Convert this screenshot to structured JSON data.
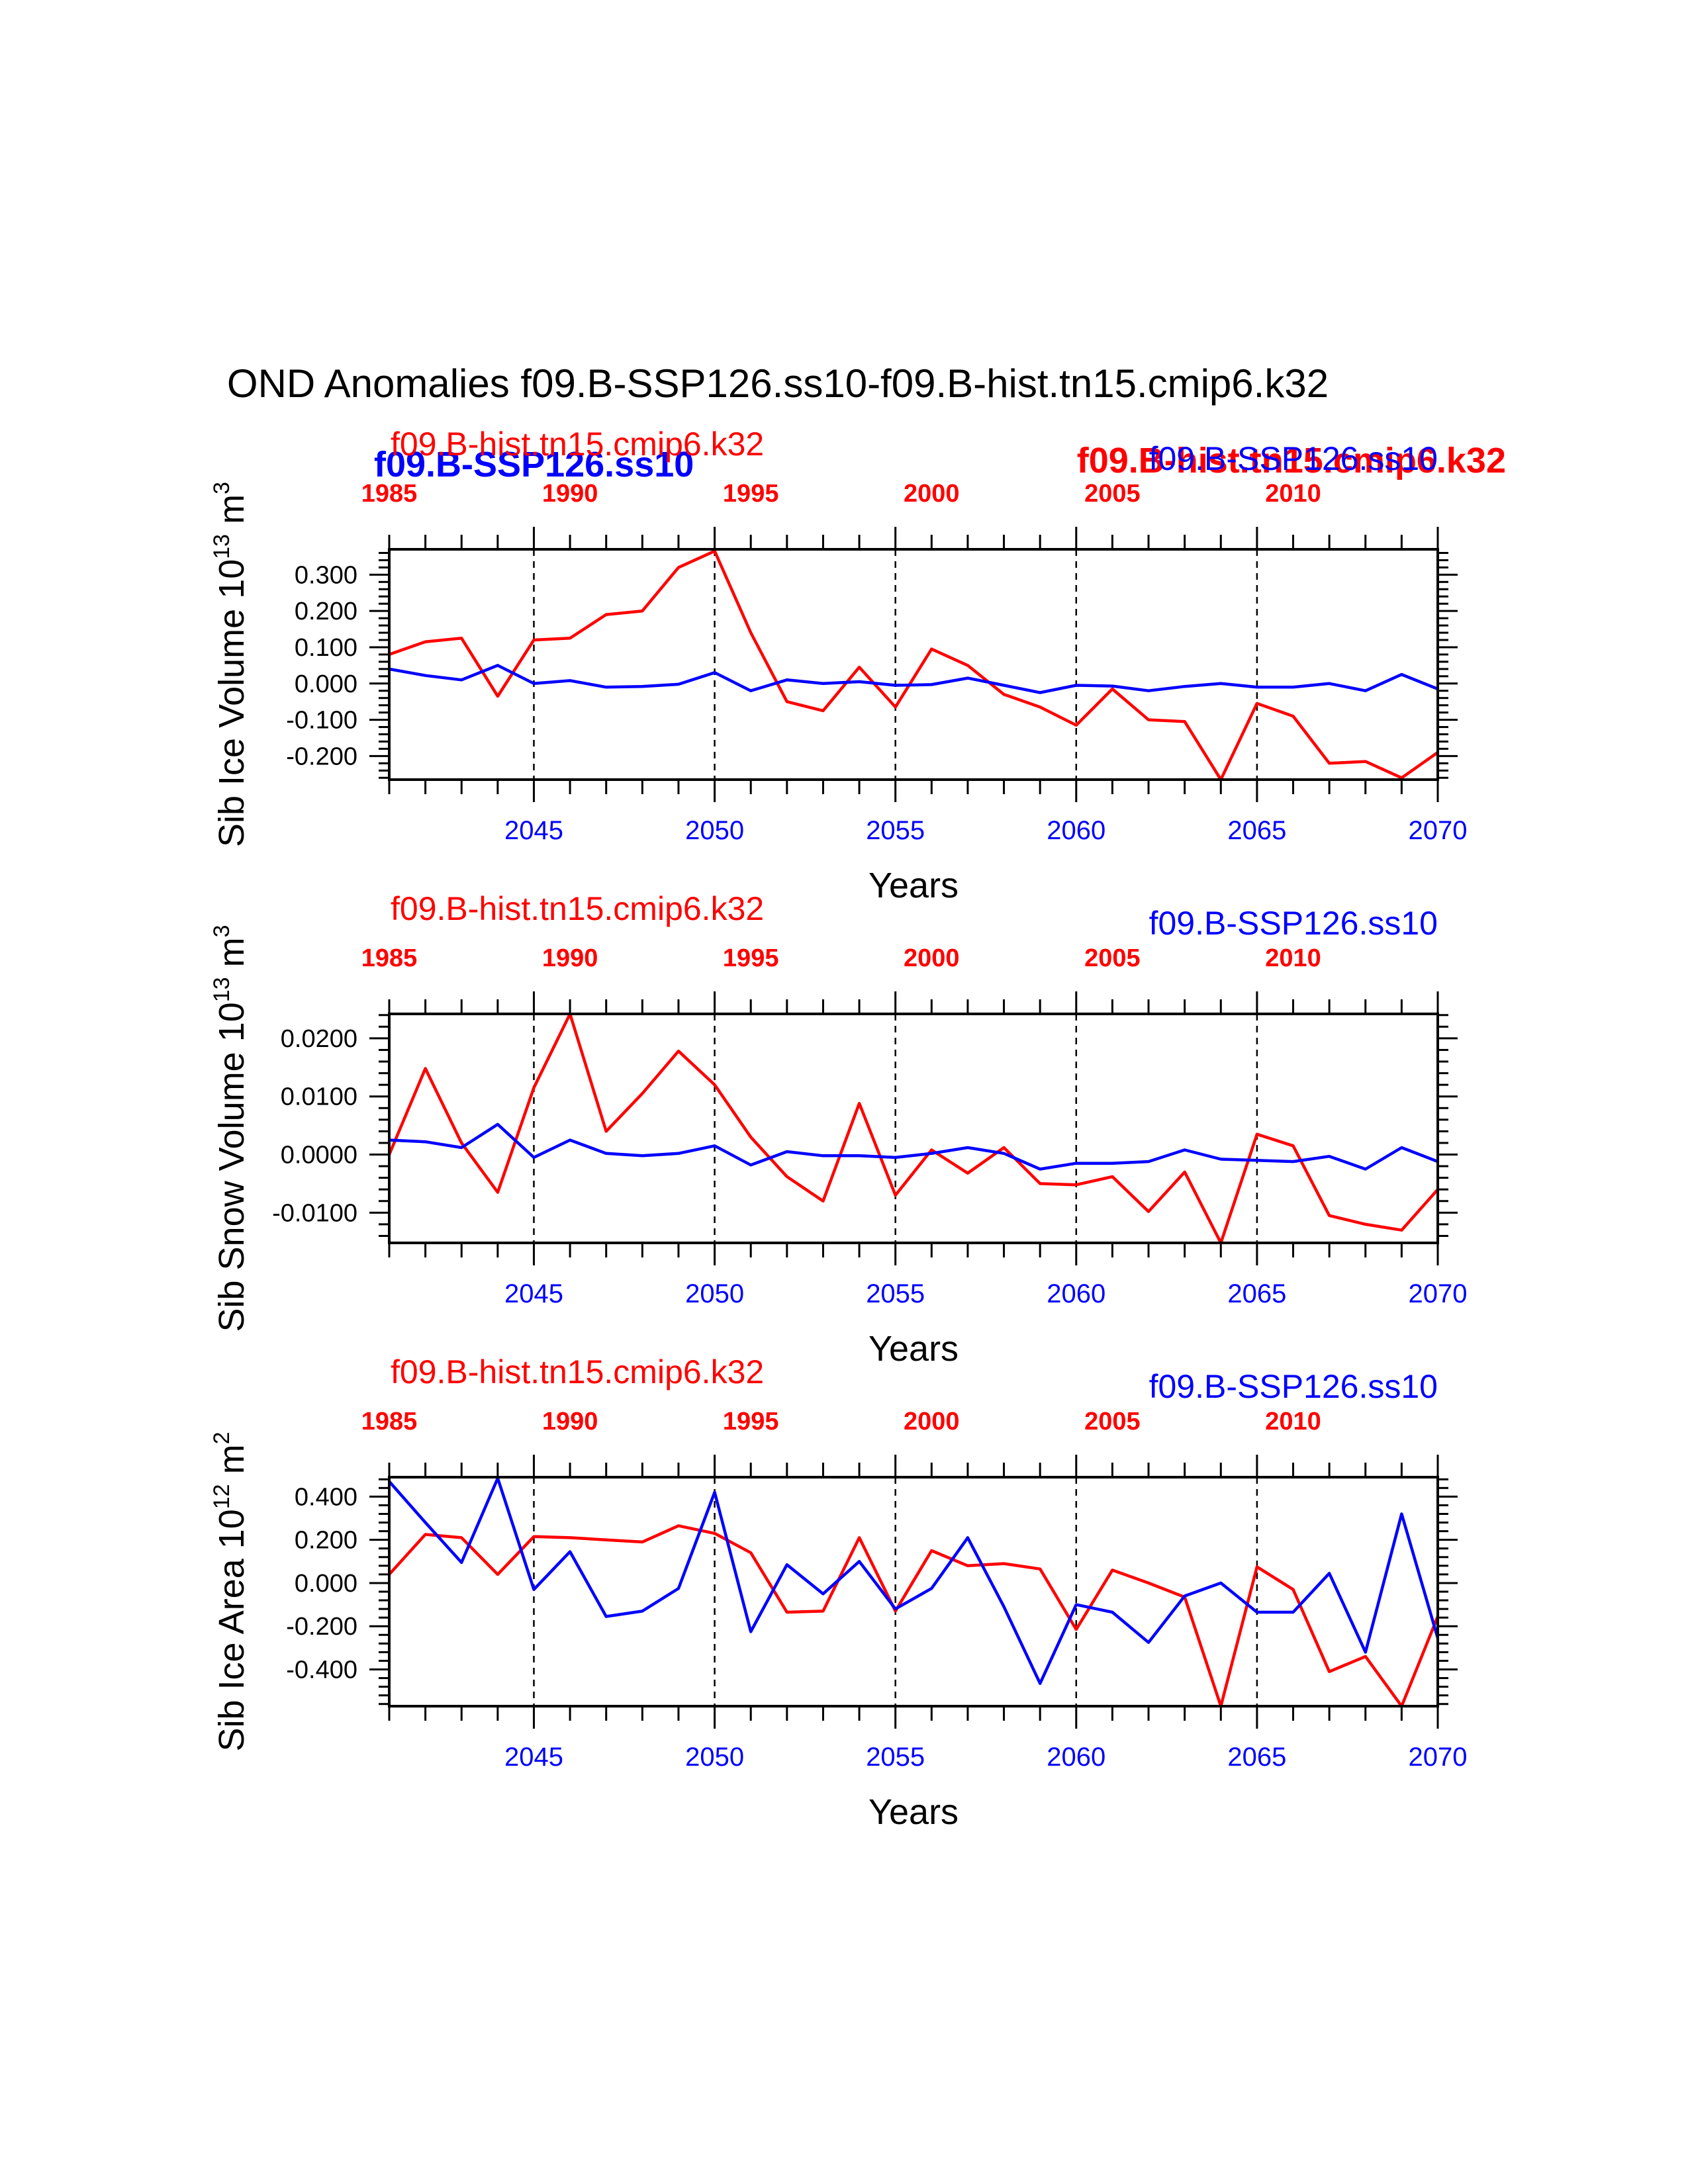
{
  "title": "OND Anomalies f09.B-SSP126.ss10-f09.B-hist.tn15.cmip6.k32",
  "overlay_labels": {
    "blue_bold": "f09.B-SSP126.ss10",
    "red_bold": "f09.B-hist.tn15.cmip6.k32"
  },
  "colors": {
    "hist": "#ff0000",
    "ssp": "#0000ff"
  },
  "chart_data": [
    {
      "type": "line",
      "ylabel": "Sib Ice Volume 10",
      "ylabel_exp": "13",
      "ylabel_unit": " m",
      "ylabel_unit_exp": "3",
      "xlabel": "Years",
      "top_series_label": "f09.B-hist.tn15.cmip6.k32",
      "bottom_series_label": "f09.B-SSP126.ss10",
      "ylim": [
        -0.265,
        0.37
      ],
      "yticks": [
        -0.2,
        -0.1,
        0.0,
        0.1,
        0.2,
        0.3
      ],
      "ytick_labels": [
        "-0.200",
        "-0.100",
        "0.000",
        "0.100",
        "0.200",
        "0.300"
      ],
      "xlim": [
        2041,
        2070
      ],
      "bottom_xticks": [
        2045,
        2050,
        2055,
        2060,
        2065,
        2070
      ],
      "top_xticks": [
        1985,
        1990,
        1995,
        2000,
        2005,
        2010
      ],
      "series": [
        {
          "name": "f09.B-hist.tn15.cmip6.k32",
          "x": [
            2041,
            2042,
            2043,
            2044,
            2045,
            2046,
            2047,
            2048,
            2049,
            2050,
            2051,
            2052,
            2053,
            2054,
            2055,
            2056,
            2057,
            2058,
            2059,
            2060,
            2061,
            2062,
            2063,
            2064,
            2065,
            2066,
            2067,
            2068,
            2069,
            2070
          ],
          "values": [
            0.08,
            0.115,
            0.125,
            -0.035,
            0.12,
            0.125,
            0.19,
            0.2,
            0.32,
            0.365,
            0.14,
            -0.05,
            -0.075,
            0.045,
            -0.065,
            0.095,
            0.05,
            -0.03,
            -0.065,
            -0.115,
            -0.015,
            -0.1,
            -0.105,
            -0.265,
            -0.055,
            -0.09,
            -0.22,
            -0.215,
            -0.26,
            -0.19
          ]
        },
        {
          "name": "f09.B-SSP126.ss10",
          "x": [
            2041,
            2042,
            2043,
            2044,
            2045,
            2046,
            2047,
            2048,
            2049,
            2050,
            2051,
            2052,
            2053,
            2054,
            2055,
            2056,
            2057,
            2058,
            2059,
            2060,
            2061,
            2062,
            2063,
            2064,
            2065,
            2066,
            2067,
            2068,
            2069,
            2070
          ],
          "values": [
            0.04,
            0.022,
            0.01,
            0.05,
            0.0,
            0.008,
            -0.01,
            -0.008,
            -0.002,
            0.03,
            -0.02,
            0.01,
            0.0,
            0.005,
            -0.005,
            -0.003,
            0.015,
            -0.005,
            -0.025,
            -0.005,
            -0.007,
            -0.02,
            -0.008,
            0.0,
            -0.01,
            -0.01,
            0.0,
            -0.02,
            0.025,
            -0.015
          ]
        }
      ]
    },
    {
      "type": "line",
      "ylabel": "Sib Snow Volume 10",
      "ylabel_exp": "13",
      "ylabel_unit": " m",
      "ylabel_unit_exp": "3",
      "xlabel": "Years",
      "top_series_label": "f09.B-hist.tn15.cmip6.k32",
      "bottom_series_label": "f09.B-SSP126.ss10",
      "ylim": [
        -0.0152,
        0.0242
      ],
      "yticks": [
        -0.01,
        0.0,
        0.01,
        0.02
      ],
      "ytick_labels": [
        "-0.0100",
        "0.0000",
        "0.0100",
        "0.0200"
      ],
      "xlim": [
        2041,
        2070
      ],
      "bottom_xticks": [
        2045,
        2050,
        2055,
        2060,
        2065,
        2070
      ],
      "top_xticks": [
        1985,
        1990,
        1995,
        2000,
        2005,
        2010
      ],
      "series": [
        {
          "name": "f09.B-hist.tn15.cmip6.k32",
          "x": [
            2041,
            2042,
            2043,
            2044,
            2045,
            2046,
            2047,
            2048,
            2049,
            2050,
            2051,
            2052,
            2053,
            2054,
            2055,
            2056,
            2057,
            2058,
            2059,
            2060,
            2061,
            2062,
            2063,
            2064,
            2065,
            2066,
            2067,
            2068,
            2069,
            2070
          ],
          "values": [
            0.0,
            0.0148,
            0.002,
            -0.0065,
            0.0115,
            0.0242,
            0.004,
            0.0105,
            0.0178,
            0.012,
            0.003,
            -0.0038,
            -0.008,
            0.0088,
            -0.007,
            0.0008,
            -0.0032,
            0.0012,
            -0.005,
            -0.0052,
            -0.0038,
            -0.0098,
            -0.003,
            -0.0152,
            0.0035,
            0.0015,
            -0.0105,
            -0.012,
            -0.013,
            -0.006
          ]
        },
        {
          "name": "f09.B-SSP126.ss10",
          "x": [
            2041,
            2042,
            2043,
            2044,
            2045,
            2046,
            2047,
            2048,
            2049,
            2050,
            2051,
            2052,
            2053,
            2054,
            2055,
            2056,
            2057,
            2058,
            2059,
            2060,
            2061,
            2062,
            2063,
            2064,
            2065,
            2066,
            2067,
            2068,
            2069,
            2070
          ],
          "values": [
            0.0025,
            0.0022,
            0.0012,
            0.0052,
            -0.0005,
            0.0025,
            0.0002,
            -0.0002,
            0.0002,
            0.0015,
            -0.0018,
            0.0005,
            -0.0002,
            -0.0002,
            -0.0005,
            0.0002,
            0.0012,
            0.0002,
            -0.0025,
            -0.0015,
            -0.0015,
            -0.0012,
            0.0008,
            -0.0008,
            -0.001,
            -0.0012,
            -0.0003,
            -0.0025,
            0.0012,
            -0.0012
          ]
        }
      ]
    },
    {
      "type": "line",
      "ylabel": "Sib Ice Area 10",
      "ylabel_exp": "12",
      "ylabel_unit": " m",
      "ylabel_unit_exp": "2",
      "xlabel": "Years",
      "top_series_label": "f09.B-hist.tn15.cmip6.k32",
      "bottom_series_label": "f09.B-SSP126.ss10",
      "ylim": [
        -0.57,
        0.49
      ],
      "yticks": [
        -0.4,
        -0.2,
        0.0,
        0.2,
        0.4
      ],
      "ytick_labels": [
        "-0.400",
        "-0.200",
        "0.000",
        "0.200",
        "0.400"
      ],
      "xlim": [
        2041,
        2070
      ],
      "bottom_xticks": [
        2045,
        2050,
        2055,
        2060,
        2065,
        2070
      ],
      "top_xticks": [
        1985,
        1990,
        1995,
        2000,
        2005,
        2010
      ],
      "series": [
        {
          "name": "f09.B-hist.tn15.cmip6.k32",
          "x": [
            2041,
            2042,
            2043,
            2044,
            2045,
            2046,
            2047,
            2048,
            2049,
            2050,
            2051,
            2052,
            2053,
            2054,
            2055,
            2056,
            2057,
            2058,
            2059,
            2060,
            2061,
            2062,
            2063,
            2064,
            2065,
            2066,
            2067,
            2068,
            2069,
            2070
          ],
          "values": [
            0.04,
            0.225,
            0.21,
            0.04,
            0.215,
            0.21,
            0.2,
            0.19,
            0.265,
            0.23,
            0.14,
            -0.135,
            -0.13,
            0.21,
            -0.13,
            0.15,
            0.08,
            0.09,
            0.065,
            -0.215,
            0.06,
            0.0,
            -0.065,
            -0.57,
            0.075,
            -0.03,
            -0.41,
            -0.34,
            -0.57,
            -0.155
          ]
        },
        {
          "name": "f09.B-SSP126.ss10",
          "x": [
            2041,
            2042,
            2043,
            2044,
            2045,
            2046,
            2047,
            2048,
            2049,
            2050,
            2051,
            2052,
            2053,
            2054,
            2055,
            2056,
            2057,
            2058,
            2059,
            2060,
            2061,
            2062,
            2063,
            2064,
            2065,
            2066,
            2067,
            2068,
            2069,
            2070
          ],
          "values": [
            0.47,
            0.28,
            0.095,
            0.485,
            -0.03,
            0.145,
            -0.155,
            -0.13,
            -0.025,
            0.42,
            -0.225,
            0.085,
            -0.05,
            0.1,
            -0.12,
            -0.025,
            0.21,
            -0.11,
            -0.465,
            -0.1,
            -0.135,
            -0.275,
            -0.06,
            0.0,
            -0.135,
            -0.135,
            0.045,
            -0.32,
            0.32,
            -0.255
          ]
        }
      ]
    }
  ]
}
